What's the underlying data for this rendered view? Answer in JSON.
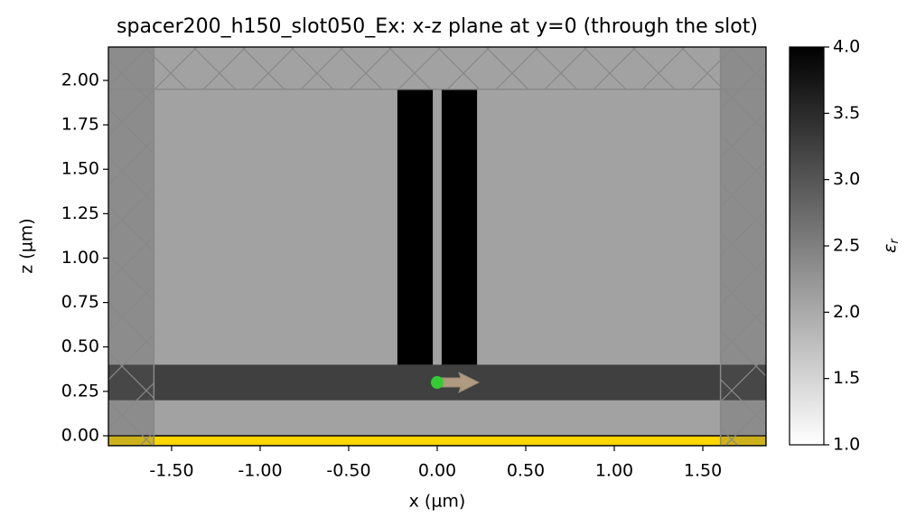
{
  "chart_data": {
    "type": "structure-map",
    "title": "spacer200_h150_slot050_Ex: x-z plane at y=0 (through the slot)",
    "x_label": "x (µm)",
    "y_label": "z (µm)",
    "xlim": [
      -1.857,
      1.857
    ],
    "ylim": [
      -0.056,
      2.188
    ],
    "xticks": [
      {
        "value": -1.5,
        "label": "-1.50"
      },
      {
        "value": -1.0,
        "label": "-1.00"
      },
      {
        "value": -0.5,
        "label": "-0.50"
      },
      {
        "value": 0.0,
        "label": "0.00"
      },
      {
        "value": 0.5,
        "label": "0.50"
      },
      {
        "value": 1.0,
        "label": "1.00"
      },
      {
        "value": 1.5,
        "label": "1.50"
      }
    ],
    "yticks": [
      {
        "value": 0.0,
        "label": "0.00"
      },
      {
        "value": 0.25,
        "label": "0.25"
      },
      {
        "value": 0.5,
        "label": "0.50"
      },
      {
        "value": 0.75,
        "label": "0.75"
      },
      {
        "value": 1.0,
        "label": "1.00"
      },
      {
        "value": 1.25,
        "label": "1.25"
      },
      {
        "value": 1.5,
        "label": "1.50"
      },
      {
        "value": 1.75,
        "label": "1.75"
      },
      {
        "value": 2.0,
        "label": "2.00"
      }
    ],
    "colormap": [
      "#ffffff",
      "#000000"
    ],
    "clim": [
      1.0,
      4.0
    ],
    "cticks": [
      {
        "value": 1.0,
        "label": "1.0"
      },
      {
        "value": 1.5,
        "label": "1.5"
      },
      {
        "value": 2.0,
        "label": "2.0"
      },
      {
        "value": 2.5,
        "label": "2.5"
      },
      {
        "value": 3.0,
        "label": "3.0"
      },
      {
        "value": 3.5,
        "label": "3.5"
      },
      {
        "value": 4.0,
        "label": "4.0"
      }
    ],
    "colorbar_label": {
      "symbol": "ε",
      "subscript": "r"
    },
    "background_eps": 2.1,
    "structures": [
      {
        "x": [
          -1.857,
          1.857
        ],
        "z": [
          0.2,
          0.4
        ],
        "eps": 3.25
      },
      {
        "x": [
          -0.225,
          -0.025
        ],
        "z": [
          0.4,
          1.95
        ],
        "eps": 4.0
      },
      {
        "x": [
          0.025,
          0.225
        ],
        "z": [
          0.4,
          1.95
        ],
        "eps": 4.0
      }
    ],
    "substrate": {
      "z": [
        -0.056,
        0.0
      ],
      "color": "#ffd700"
    },
    "pml": {
      "x": [
        -1.6,
        1.6
      ],
      "z_top": 1.95
    },
    "source": {
      "x": 0.0,
      "z": 0.3,
      "color": "#33cc33",
      "arrow_color": "#b09a80"
    }
  }
}
